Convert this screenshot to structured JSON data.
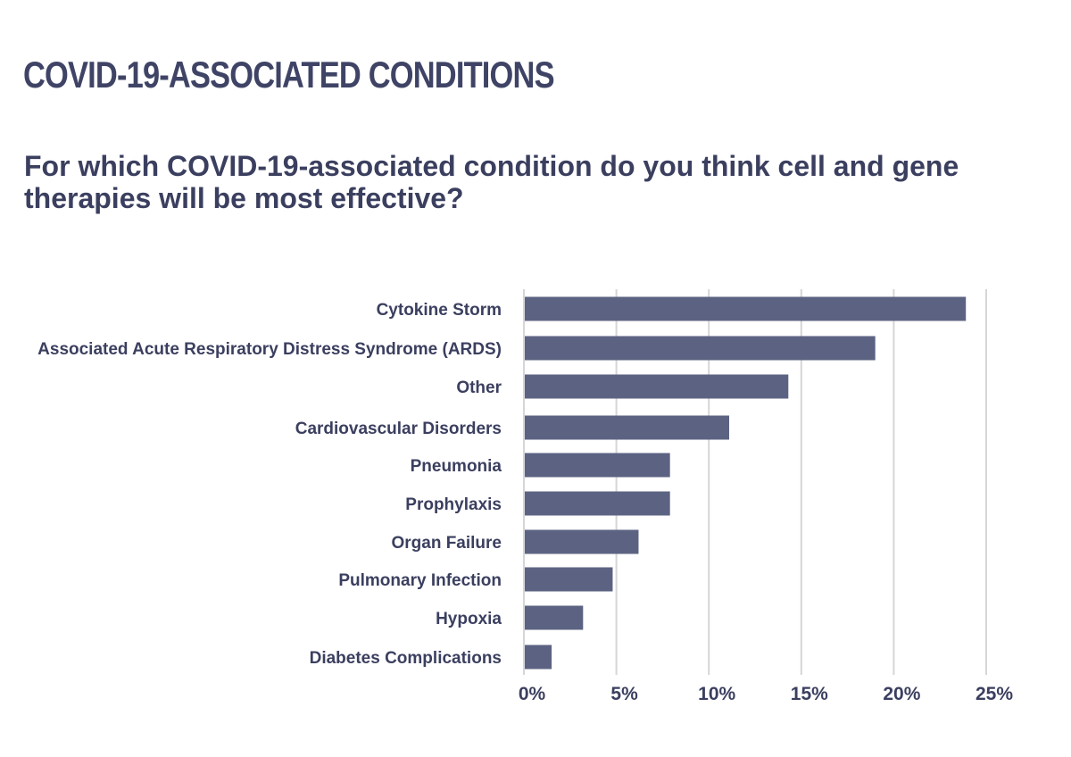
{
  "chart_data": {
    "type": "bar",
    "orientation": "horizontal",
    "title": "COVID-19-ASSOCIATED CONDITIONS",
    "subtitle": "For which COVID-19-associated condition do you think cell and gene therapies will be most effective?",
    "xlabel": "",
    "ylabel": "",
    "categories": [
      "Cytokine Storm",
      "Associated Acute Respiratory Distress Syndrome (ARDS)",
      "Other",
      "Cardiovascular Disorders",
      "Pneumonia",
      "Prophylaxis",
      "Organ Failure",
      "Pulmonary Infection",
      "Hypoxia",
      "Diabetes Complications"
    ],
    "values": [
      23.9,
      19.0,
      14.3,
      11.1,
      7.9,
      7.9,
      6.2,
      4.8,
      3.2,
      1.5
    ],
    "xlim": [
      0,
      25
    ],
    "xticks": [
      0,
      5,
      10,
      15,
      20,
      25
    ],
    "xtick_labels": [
      "0%",
      "5%",
      "10%",
      "15%",
      "20%",
      "25%"
    ],
    "grid": "vertical",
    "bar_color": "#5c6382",
    "grid_color": "#d6d6d9"
  }
}
